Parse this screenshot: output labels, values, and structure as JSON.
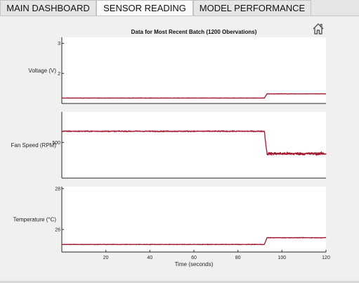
{
  "tabs": [
    {
      "label": "MAIN DASHBOARD",
      "active": false
    },
    {
      "label": "SENSOR READING",
      "active": true
    },
    {
      "label": "MODEL PERFORMANCE",
      "active": false
    }
  ],
  "toolbar": {
    "home_icon": "home-icon"
  },
  "colors": {
    "line": "#a0182e",
    "axes_bg": "#ffffff",
    "panel_bg": "#f0f0f0"
  },
  "chart_data": [
    {
      "type": "line",
      "title": "Data for Most Recent Batch (1200 Obervations)",
      "ylabel": "Voltage (V)",
      "xlim": [
        0,
        120
      ],
      "ylim": [
        1.0,
        3.2
      ],
      "yticks": [
        2,
        3
      ],
      "ytick_labels": [
        "2",
        "3"
      ],
      "grid": false,
      "step_x": 92,
      "level_before": 1.18,
      "level_after": 1.32,
      "noise": 0.006
    },
    {
      "type": "line",
      "title": "",
      "ylabel": "Fan Speed (RPM)",
      "xlim": [
        0,
        120
      ],
      "ylim": [
        430,
        560
      ],
      "yticks": [
        500
      ],
      "ytick_labels": [
        "500"
      ],
      "grid": false,
      "step_x": 92,
      "level_before": 522,
      "level_after": 478,
      "noise": 0.9,
      "noise_after": 2.6
    },
    {
      "type": "line",
      "title": "",
      "xlabel": "Time (seconds)",
      "ylabel": "Temperature (°C)",
      "xlim": [
        0,
        120
      ],
      "ylim": [
        24.9,
        28.1
      ],
      "xticks": [
        20,
        40,
        60,
        80,
        100,
        120
      ],
      "xtick_labels": [
        "20",
        "40",
        "60",
        "80",
        "100",
        "120"
      ],
      "yticks": [
        26,
        28
      ],
      "ytick_labels": [
        "26",
        "28"
      ],
      "grid": false,
      "step_x": 92,
      "level_before": 25.27,
      "level_after": 25.6,
      "noise": 0.012
    }
  ]
}
